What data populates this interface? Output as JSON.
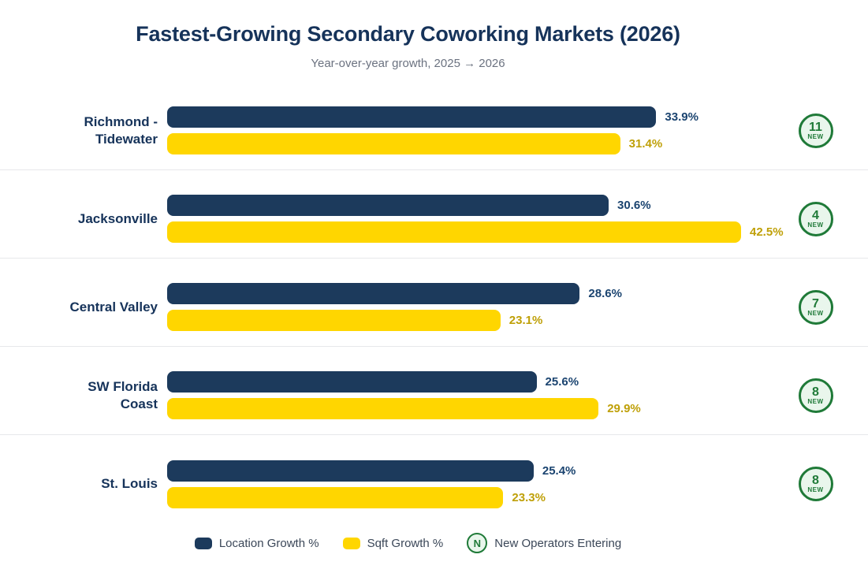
{
  "header": {
    "title": "Fastest-Growing Secondary Coworking Markets (2026)",
    "subtitle": "Year-over-year growth, 2025 → 2026"
  },
  "colors": {
    "navy": "#1c3a5c",
    "navy_dark": "#16335a",
    "navy_value": "#1b4470",
    "yellow": "#ffd600",
    "gold_value": "#bfa008",
    "green": "#1f7a38",
    "green_light": "#e9f6ec",
    "gray": "#6b7280",
    "legend_text": "#3b4758",
    "divider": "#e7e8ea"
  },
  "chart_data": {
    "type": "bar",
    "orientation": "horizontal",
    "title": "Fastest-Growing Secondary Coworking Markets (2026)",
    "subtitle": "Year-over-year growth, 2025 → 2026",
    "categories": [
      "Richmond - Tidewater",
      "Jacksonville",
      "Central Valley",
      "SW Florida Coast",
      "St. Louis"
    ],
    "series": [
      {
        "name": "Location Growth %",
        "color": "#1c3a5c",
        "values": [
          33.9,
          30.6,
          28.6,
          25.6,
          25.4
        ]
      },
      {
        "name": "Sqft Growth %",
        "color": "#ffd600",
        "values": [
          31.4,
          42.5,
          23.1,
          29.9,
          23.3
        ]
      }
    ],
    "badges": {
      "name": "New Operators Entering",
      "label": "NEW",
      "values": [
        11,
        4,
        7,
        8,
        8
      ]
    },
    "value_suffix": "%",
    "layout": {
      "grid": false,
      "axis_labels_hidden": true,
      "bar_full_width_at_percent": 39.8,
      "legend_position": "bottom"
    }
  },
  "rows": [
    {
      "label_lines": [
        "Richmond -",
        "Tidewater"
      ],
      "location_label": "33.9%",
      "sqft_label": "31.4%",
      "new_count": "11"
    },
    {
      "label_lines": [
        "Jacksonville"
      ],
      "location_label": "30.6%",
      "sqft_label": "42.5%",
      "new_count": "4"
    },
    {
      "label_lines": [
        "Central Valley"
      ],
      "location_label": "28.6%",
      "sqft_label": "23.1%",
      "new_count": "7"
    },
    {
      "label_lines": [
        "SW Florida",
        "Coast"
      ],
      "location_label": "25.6%",
      "sqft_label": "29.9%",
      "new_count": "8"
    },
    {
      "label_lines": [
        "St. Louis"
      ],
      "location_label": "25.4%",
      "sqft_label": "23.3%",
      "new_count": "8"
    }
  ],
  "badge_label": "NEW",
  "legend": {
    "items": [
      {
        "label": "Location Growth %"
      },
      {
        "label": "Sqft Growth %"
      },
      {
        "icon_letter": "N",
        "label": "New Operators Entering"
      }
    ]
  }
}
